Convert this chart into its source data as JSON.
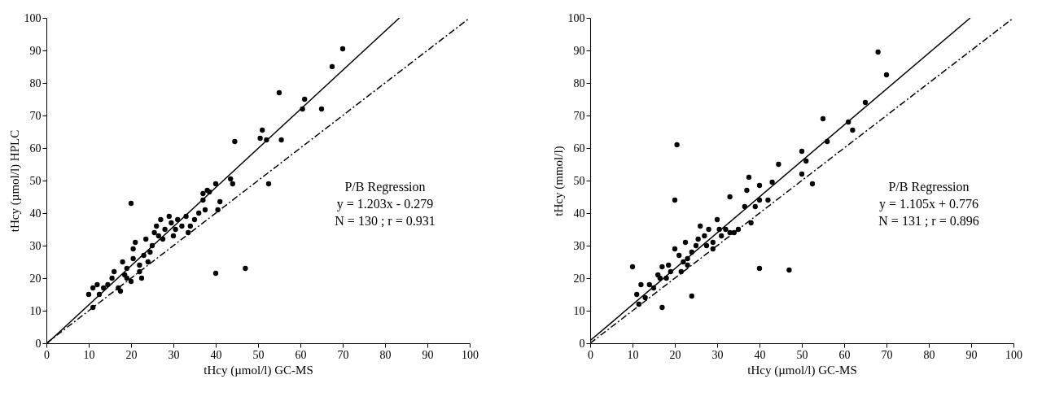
{
  "chart_data": [
    {
      "type": "scatter",
      "xlabel": "tHcy (µmol/l) GC-MS",
      "ylabel": "tHcy (µmol/l) HPLC",
      "xlim": [
        0,
        100
      ],
      "ylim": [
        0,
        100
      ],
      "xticks": [
        0,
        10,
        20,
        30,
        40,
        50,
        60,
        70,
        80,
        90,
        100
      ],
      "yticks": [
        0,
        10,
        20,
        30,
        40,
        50,
        60,
        70,
        80,
        90,
        100
      ],
      "grid": false,
      "annotations": [
        "P/B Regression",
        "y = 1.203x - 0.279",
        "N = 130 ; r = 0.931"
      ],
      "series": [
        {
          "type": "scatter",
          "marker": "circle",
          "color": "#000000",
          "x": [
            70,
            67.5,
            61,
            60.5,
            65,
            55,
            51,
            50.5,
            52,
            55.5,
            44.5,
            52.5,
            43.5,
            44,
            40,
            40.5,
            41,
            38,
            37,
            38.5,
            37,
            37.5,
            40,
            47,
            20,
            10,
            11,
            12,
            11,
            12.5,
            13.5,
            14.5,
            15.5,
            16,
            17,
            17.5,
            18,
            18.5,
            19,
            20,
            20.5,
            20.5,
            21,
            22,
            22,
            23,
            23.5,
            24.5,
            25,
            25.5,
            26,
            27,
            27.5,
            28,
            29,
            29.5,
            30,
            31,
            32,
            33,
            33.5,
            35,
            36,
            34,
            30.5,
            26.5,
            24,
            22.5,
            19
          ],
          "values": [
            90.5,
            85,
            75,
            72,
            72,
            77,
            65.5,
            63,
            62.5,
            62.5,
            62,
            49,
            50.5,
            49,
            49,
            41,
            43.5,
            47,
            46,
            46.5,
            44,
            41,
            21.5,
            23,
            43,
            15,
            17,
            18,
            11,
            15,
            17,
            18,
            20,
            22,
            17,
            16,
            25,
            21,
            23,
            19,
            26,
            29,
            31,
            24,
            22,
            27,
            32,
            28,
            30,
            34,
            36,
            38,
            32,
            35,
            39,
            37,
            33,
            38,
            36,
            39,
            34,
            38,
            40,
            36,
            35,
            33,
            25,
            20,
            20
          ]
        },
        {
          "type": "line",
          "marker": "none",
          "line_style": "solid",
          "color": "#000000",
          "x": [
            0.2,
            83.4
          ],
          "values": [
            0,
            100
          ]
        },
        {
          "type": "line",
          "marker": "none",
          "line_style": "dashed",
          "color": "#000000",
          "x": [
            0,
            100
          ],
          "values": [
            0,
            100
          ]
        }
      ]
    },
    {
      "type": "scatter",
      "xlabel": "tHcy (µmol/l) GC-MS",
      "ylabel": "tHcy (mmol/l)",
      "xlim": [
        0,
        100
      ],
      "ylim": [
        0,
        100
      ],
      "xticks": [
        0,
        10,
        20,
        30,
        40,
        50,
        60,
        70,
        80,
        90,
        100
      ],
      "yticks": [
        0,
        10,
        20,
        30,
        40,
        50,
        60,
        70,
        80,
        90,
        100
      ],
      "grid": false,
      "annotations": [
        "P/B Regression",
        "y = 1.105x + 0.776",
        "N = 131 ; r = 0.896"
      ],
      "series": [
        {
          "type": "scatter",
          "marker": "circle",
          "color": "#000000",
          "x": [
            68,
            70,
            65,
            61,
            62,
            55,
            56,
            50,
            51,
            52.5,
            50,
            44.5,
            43,
            42,
            40,
            40,
            39,
            37.5,
            37,
            36.5,
            38,
            33,
            40,
            47,
            20.5,
            20,
            24,
            17,
            10,
            11,
            11.5,
            12,
            13,
            14,
            15,
            16,
            16.5,
            17,
            18,
            18.5,
            19,
            20,
            21,
            22,
            22.5,
            23,
            24,
            25,
            25.5,
            26,
            27,
            28,
            29,
            30,
            30.5,
            31,
            32,
            33,
            34,
            35,
            27.5,
            29,
            23,
            21.5
          ],
          "values": [
            89.5,
            82.5,
            74,
            68,
            65.5,
            69,
            62,
            59,
            56,
            49,
            52,
            55,
            49.5,
            44,
            48.5,
            44,
            42,
            51,
            47,
            42,
            37,
            45,
            23,
            22.5,
            61,
            44,
            14.5,
            11,
            23.5,
            15,
            12,
            18,
            14,
            18,
            17,
            21,
            20,
            23.5,
            20,
            24,
            22,
            29,
            27,
            25,
            31,
            26,
            28,
            30,
            32,
            36,
            33,
            35,
            31,
            38,
            35,
            33,
            35,
            34,
            34,
            35,
            30,
            29,
            24,
            22
          ]
        },
        {
          "type": "line",
          "marker": "none",
          "line_style": "solid",
          "color": "#000000",
          "x": [
            0,
            89.8
          ],
          "values": [
            0.8,
            100
          ]
        },
        {
          "type": "line",
          "marker": "none",
          "line_style": "dashed",
          "color": "#000000",
          "x": [
            0,
            100
          ],
          "values": [
            0,
            100
          ]
        }
      ]
    }
  ]
}
